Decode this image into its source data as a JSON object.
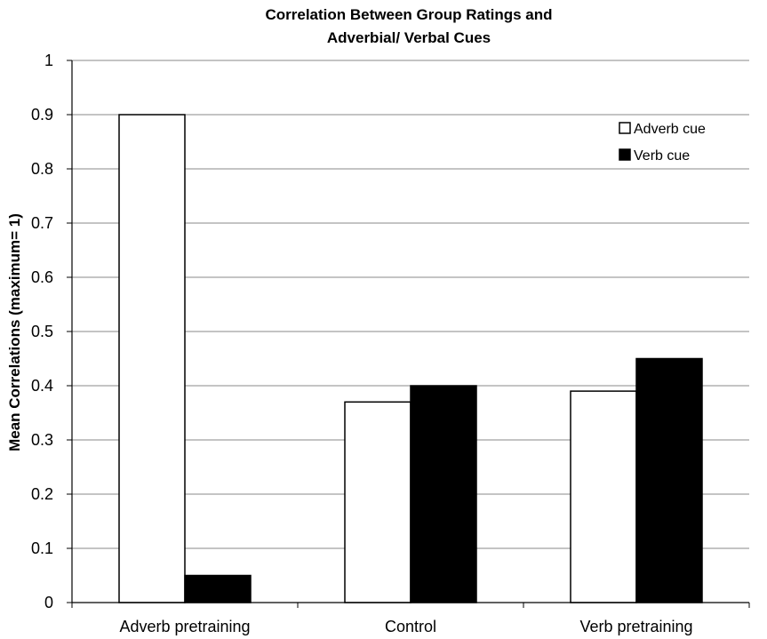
{
  "chart_data": {
    "type": "bar",
    "title_lines": [
      "Correlation Between Group Ratings and",
      "Adverbial/ Verbal Cues"
    ],
    "xlabel": "",
    "ylabel": "Mean Correlations (maximum= 1)",
    "categories": [
      "Adverb pretraining",
      "Control",
      "Verb pretraining"
    ],
    "series": [
      {
        "name": "Adverb cue",
        "values": [
          0.9,
          0.37,
          0.39
        ],
        "color": "#ffffff"
      },
      {
        "name": "Verb cue",
        "values": [
          0.05,
          0.4,
          0.45
        ],
        "color": "#000000"
      }
    ],
    "ylim": [
      0,
      1
    ],
    "yticks": [
      0,
      0.1,
      0.2,
      0.3,
      0.4,
      0.5,
      0.6,
      0.7,
      0.8,
      0.9,
      1
    ],
    "ytick_labels": [
      "0",
      "0.1",
      "0.2",
      "0.3",
      "0.4",
      "0.5",
      "0.6",
      "0.7",
      "0.8",
      "0.9",
      "1"
    ],
    "grid": true,
    "legend_position": "top-right",
    "colors": {
      "grid": "#888888",
      "axis": "#000000",
      "bar_stroke": "#000000"
    }
  }
}
